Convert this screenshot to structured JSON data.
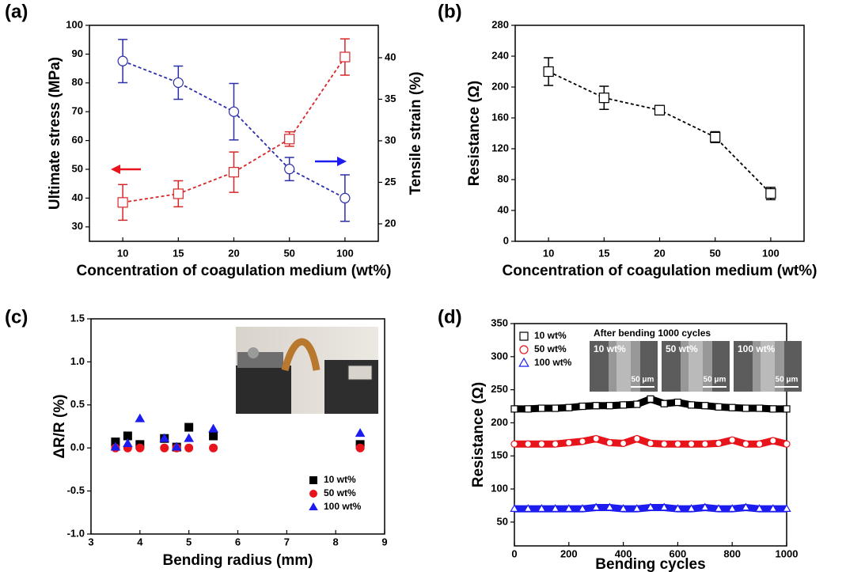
{
  "chart_data": [
    {
      "type": "line",
      "panel_label": "(a)",
      "categories": [
        "10",
        "15",
        "20",
        "50",
        "100"
      ],
      "xlabel": "Concentration of coagulation medium (wt%)",
      "ylabel": "Ultimate stress (MPa)",
      "y2label": "Tensile strain (%)",
      "ylim": [
        25,
        100
      ],
      "yticks": [
        30,
        40,
        50,
        60,
        70,
        80,
        90,
        100
      ],
      "y2lim": [
        17.9,
        43.9
      ],
      "y2ticks": [
        20,
        25,
        30,
        35,
        40
      ],
      "series": [
        {
          "color": "#d62728",
          "marker": "square",
          "values": [
            38.5,
            41.5,
            49,
            60.5,
            89
          ],
          "errors": [
            6.2,
            4.5,
            7,
            2.5,
            6.3
          ]
        },
        {
          "color": "#2b2fa8",
          "marker": "circle",
          "axis": "y2",
          "values": [
            39.6,
            37,
            33.5,
            26.6,
            23.1
          ],
          "errors": [
            2.6,
            2,
            3.4,
            1.4,
            2.8
          ]
        }
      ]
    },
    {
      "type": "line",
      "panel_label": "(b)",
      "categories": [
        "10",
        "15",
        "20",
        "50",
        "100"
      ],
      "xlabel": "Concentration of coagulation medium (wt%)",
      "ylabel": "Resistance (Ω)",
      "ylim": [
        0,
        280
      ],
      "yticks": [
        0,
        40,
        80,
        120,
        160,
        200,
        240,
        280
      ],
      "series": [
        {
          "color": "#000000",
          "marker": "square",
          "values": [
            220,
            186,
            170,
            135,
            62
          ],
          "errors": [
            18,
            15,
            6,
            7,
            8
          ]
        }
      ]
    },
    {
      "type": "scatter",
      "panel_label": "(c)",
      "xlabel": "Bending radius (mm)",
      "ylabel": "ΔR/R (%)",
      "xlim": [
        3,
        9
      ],
      "xticks": [
        3,
        4,
        5,
        6,
        7,
        8,
        9
      ],
      "ylim": [
        -1,
        1.5
      ],
      "yticks": [
        {
          "value": -1,
          "label": "-1.0"
        },
        -0.5,
        {
          "value": 0,
          "label": "0.0"
        },
        0.5,
        {
          "value": 1,
          "label": "1.0"
        },
        1.5
      ],
      "x": [
        3.5,
        3.75,
        4,
        4.5,
        4.75,
        5,
        5.5,
        8.5
      ],
      "legend": "lower right",
      "series": [
        {
          "name": "10 wt%",
          "color": "#000000",
          "marker": "square",
          "values": [
            0.07,
            0.14,
            0.04,
            0.11,
            0.01,
            0.24,
            0.14,
            0.04
          ]
        },
        {
          "name": "50 wt%",
          "color": "#e8141b",
          "marker": "circle",
          "values": [
            0,
            0,
            0,
            0,
            0,
            0,
            0,
            0
          ]
        },
        {
          "name": "100 wt%",
          "color": "#1c1cf0",
          "marker": "triangle",
          "values": [
            0.01,
            0.05,
            0.34,
            0.11,
            0.01,
            0.11,
            0.22,
            0.17
          ]
        }
      ]
    },
    {
      "type": "line",
      "panel_label": "(d)",
      "xlabel": "Bending cycles",
      "ylabel": "Resistance (Ω)",
      "xlim": [
        0,
        1000
      ],
      "xticks": [
        0,
        200,
        400,
        600,
        800,
        1000
      ],
      "ylim": [
        14,
        350
      ],
      "yticks": [
        50,
        100,
        150,
        200,
        250,
        300,
        350
      ],
      "x": [
        0,
        50,
        100,
        150,
        200,
        250,
        300,
        350,
        400,
        450,
        500,
        550,
        600,
        650,
        700,
        750,
        800,
        850,
        900,
        950,
        1000
      ],
      "legend": "upper left",
      "inset_title": "After bending 1000 cycles",
      "inset_labels": [
        "10 wt%",
        "50 wt%",
        "100 wt%"
      ],
      "inset_scale": "50 μm",
      "series": [
        {
          "name": "10 wt%",
          "color": "#000000",
          "marker": "square",
          "values": [
            221,
            221,
            222,
            222,
            223,
            225,
            226,
            226,
            227,
            228,
            236,
            229,
            231,
            227,
            226,
            224,
            223,
            222,
            222,
            221,
            221
          ]
        },
        {
          "name": "50 wt%",
          "color": "#e8141b",
          "marker": "circle",
          "values": [
            168,
            168,
            168,
            168,
            170,
            172,
            176,
            170,
            169,
            176,
            169,
            168,
            168,
            168,
            168,
            169,
            174,
            168,
            168,
            173,
            168
          ]
        },
        {
          "name": "100 wt%",
          "color": "#1c1cf0",
          "marker": "triangle",
          "values": [
            70,
            70,
            70,
            70,
            70,
            70,
            72,
            72,
            70,
            70,
            72,
            72,
            70,
            70,
            72,
            70,
            70,
            72,
            70,
            70,
            70
          ]
        }
      ]
    }
  ]
}
